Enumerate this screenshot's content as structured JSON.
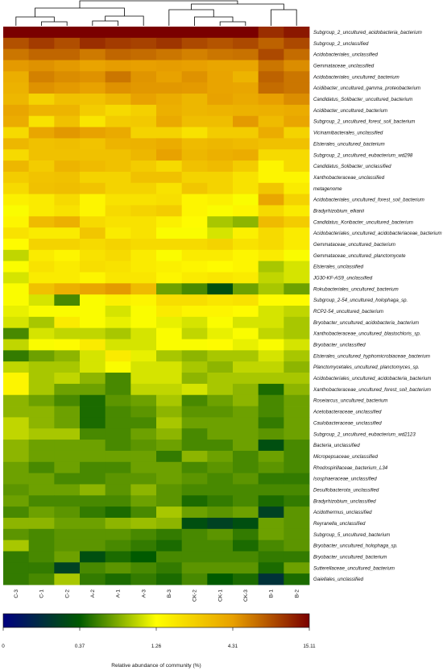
{
  "chart_data": {
    "type": "heatmap",
    "value_scale": "log",
    "columns": [
      "C-3",
      "C-1",
      "C-2",
      "A-2",
      "A-1",
      "A-3",
      "B-3",
      "CK-2",
      "CK-1",
      "CK-3",
      "B-1",
      "B-2"
    ],
    "rows": [
      "Subgroup_2_uncultured_acidobacteria_bacterium",
      "Subgroup_2_unclassified",
      "Acidobacteriales_unclassified",
      "Gemmataceae_unclassified",
      "Acidobacteriales_uncultured_bacterium",
      "Acidibacter_uncultured_gamma_proteobacterium",
      "Candidatus_Solibacter_uncultured_bacterium",
      "Acidibacter_uncultured_bacterium",
      "Subgroup_2_uncultured_forest_soil_bacterium",
      "Vicinamibacterales_unclassified",
      "Elsterales_uncultured_bacterium",
      "Subgroup_2_uncultured_eubacterium_wd298",
      "Candidatus_Solibacter_unclassified",
      "Xanthobacteraceae_unclassified",
      "metagenome",
      "Acidobacteriales_uncultured_forest_soil_bacterium",
      "Bradyrhizobium_elkanii",
      "Candidatus_Koribacter_uncultured_bacterium",
      "Acidobacteriales_uncultured_acidobacteriaceae_bacterium",
      "Gemmataceae_uncultured_bacterium",
      "Gemmataceae_uncultured_planctomycete",
      "Elsterales_unclassified",
      "JG30-KF-AS9_unclassified",
      "Rokubacteriales_uncultured_bacterium",
      "Subgroup_2-54_uncultured_holophaga_sp.",
      "RCP2-54_uncultured_bacterium",
      "Bryobacter_uncultured_acidobacteria_bacterium",
      "Xanthobacteraceae_uncultured_blastochloris_sp.",
      "Bryobacter_unclassified",
      "Elsterales_uncultured_hyphomicrobiaceae_bacterium",
      "Planctomycetales_uncultured_planctomyces_sp.",
      "Acidobacteriales_uncultured_acidobacteria_bacterium",
      "Xanthobacteraceae_uncultured_forest_soil_bacterium",
      "Roseiarcus_uncultured_bacterium",
      "Acetobacteraceae_unclassified",
      "Caulobacteraceae_unclassified",
      "Subgroup_2_uncultured_eubacterium_wd2123",
      "Bacteria_unclassified",
      "Micropepsaceae_unclassified",
      "Rhodospirillaceae_bacterium_L34",
      "Isosphaeraceae_unclassified",
      "Desulfobacterota_unclassified",
      "Bradyrhizobium_unclassified",
      "Acidothermus_unclassified",
      "Reyranella_unclassified",
      "Subgroup_5_uncultured_bacterium",
      "Bryobacter_uncultured_holophaga_sp.",
      "Bryobacter_uncultured_bacterium",
      "Sutterellaceae_uncultured_bacterium",
      "Gaiellales_unclassified"
    ],
    "values": [
      [
        15.11,
        15.11,
        15.11,
        15.11,
        15.11,
        15.11,
        15.11,
        15.11,
        15.11,
        15.11,
        10.5,
        12.5
      ],
      [
        8.0,
        9.5,
        8.2,
        10.5,
        9.5,
        9.0,
        10.0,
        8.5,
        7.8,
        8.5,
        7.0,
        8.5
      ],
      [
        6.0,
        6.8,
        6.8,
        5.8,
        6.8,
        6.5,
        6.0,
        5.5,
        6.0,
        6.2,
        8.5,
        6.5
      ],
      [
        4.5,
        4.8,
        4.5,
        4.1,
        4.4,
        4.3,
        4.4,
        4.3,
        4.0,
        4.0,
        6.0,
        5.0
      ],
      [
        3.6,
        5.5,
        5.0,
        4.8,
        6.0,
        4.7,
        4.2,
        4.8,
        4.1,
        3.3,
        7.0,
        6.0
      ],
      [
        3.4,
        4.8,
        4.5,
        4.2,
        4.8,
        4.6,
        4.6,
        4.5,
        4.1,
        4.0,
        6.5,
        6.0
      ],
      [
        3.2,
        2.2,
        2.8,
        2.7,
        3.2,
        4.2,
        3.7,
        3.2,
        4.2,
        3.8,
        4.3,
        5.0
      ],
      [
        4.0,
        3.3,
        3.3,
        2.4,
        2.0,
        2.3,
        3.5,
        3.2,
        3.3,
        3.4,
        3.5,
        3.7
      ],
      [
        3.7,
        1.8,
        2.8,
        1.7,
        2.4,
        2.5,
        3.8,
        2.9,
        2.9,
        4.5,
        3.0,
        4.0
      ],
      [
        2.0,
        4.0,
        4.6,
        4.2,
        3.8,
        2.2,
        2.2,
        1.8,
        2.4,
        2.4,
        3.7,
        2.2
      ],
      [
        3.2,
        2.8,
        2.9,
        2.7,
        3.3,
        3.4,
        3.7,
        3.0,
        3.2,
        3.0,
        2.8,
        2.8
      ],
      [
        2.0,
        2.8,
        2.8,
        2.8,
        2.8,
        3.2,
        4.2,
        3.2,
        3.5,
        3.7,
        2.0,
        2.0
      ],
      [
        3.2,
        2.4,
        3.3,
        3.0,
        2.8,
        2.4,
        2.0,
        2.8,
        3.0,
        2.4,
        1.4,
        2.0
      ],
      [
        2.4,
        2.7,
        2.8,
        2.2,
        2.2,
        2.8,
        2.8,
        2.2,
        2.2,
        1.8,
        1.4,
        1.4
      ],
      [
        2.0,
        2.8,
        2.9,
        2.7,
        2.2,
        2.2,
        1.8,
        2.6,
        2.2,
        1.8,
        2.6,
        1.6
      ],
      [
        1.5,
        1.6,
        2.0,
        1.4,
        1.8,
        1.8,
        1.9,
        1.4,
        1.5,
        1.2,
        4.0,
        2.2
      ],
      [
        1.2,
        1.6,
        1.8,
        1.4,
        2.0,
        2.2,
        2.4,
        1.4,
        1.2,
        1.4,
        2.0,
        1.6
      ],
      [
        1.4,
        3.0,
        3.5,
        2.0,
        1.8,
        1.8,
        1.5,
        1.3,
        0.8,
        0.7,
        3.0,
        2.4
      ],
      [
        1.8,
        1.6,
        1.6,
        2.6,
        1.6,
        1.8,
        1.2,
        1.2,
        1.0,
        1.5,
        2.0,
        1.6
      ],
      [
        1.3,
        2.2,
        2.2,
        2.0,
        2.2,
        2.0,
        2.0,
        2.0,
        2.2,
        1.8,
        2.0,
        1.6
      ],
      [
        0.9,
        1.6,
        1.4,
        1.8,
        2.0,
        1.6,
        1.2,
        1.6,
        1.6,
        1.4,
        1.6,
        1.2
      ],
      [
        1.2,
        1.8,
        1.6,
        1.9,
        1.8,
        1.6,
        1.5,
        1.4,
        1.3,
        1.4,
        0.8,
        1.0
      ],
      [
        1.0,
        1.6,
        1.6,
        1.4,
        1.7,
        1.7,
        1.4,
        1.6,
        1.7,
        1.6,
        0.9,
        1.0
      ],
      [
        1.2,
        2.8,
        3.5,
        4.0,
        4.5,
        3.0,
        0.6,
        0.5,
        0.3,
        0.6,
        0.8,
        0.6
      ],
      [
        1.2,
        1.0,
        0.5,
        1.2,
        1.5,
        1.4,
        1.9,
        1.9,
        1.7,
        1.8,
        1.3,
        1.3
      ],
      [
        1.1,
        1.2,
        1.2,
        1.2,
        1.0,
        1.2,
        1.6,
        1.4,
        1.4,
        1.3,
        1.0,
        0.9
      ],
      [
        1.0,
        0.8,
        1.6,
        1.2,
        1.1,
        1.2,
        1.1,
        1.0,
        1.2,
        1.0,
        1.0,
        0.8
      ],
      [
        0.5,
        1.0,
        0.9,
        0.9,
        0.8,
        1.0,
        1.2,
        0.9,
        1.1,
        1.2,
        0.9,
        0.8
      ],
      [
        0.9,
        1.2,
        1.3,
        1.6,
        1.0,
        1.0,
        1.2,
        1.2,
        1.3,
        1.1,
        1.2,
        1.0
      ],
      [
        0.45,
        0.6,
        0.7,
        1.0,
        1.6,
        1.1,
        0.8,
        0.7,
        0.8,
        0.8,
        1.0,
        0.8
      ],
      [
        0.9,
        0.8,
        0.8,
        1.0,
        1.2,
        1.0,
        1.0,
        0.8,
        0.7,
        0.9,
        0.9,
        0.7
      ],
      [
        1.4,
        0.8,
        0.9,
        0.7,
        0.5,
        1.0,
        1.0,
        0.7,
        0.8,
        0.8,
        0.8,
        0.8
      ],
      [
        1.4,
        0.8,
        0.6,
        0.6,
        0.5,
        0.9,
        0.9,
        1.0,
        0.8,
        0.7,
        0.4,
        0.7
      ],
      [
        0.7,
        0.6,
        0.5,
        0.4,
        0.55,
        0.6,
        0.8,
        0.5,
        0.6,
        0.7,
        0.5,
        0.6
      ],
      [
        0.7,
        0.7,
        0.6,
        0.4,
        0.5,
        0.55,
        0.7,
        0.55,
        0.55,
        0.6,
        0.5,
        0.6
      ],
      [
        0.9,
        0.7,
        0.6,
        0.4,
        0.5,
        0.5,
        0.8,
        0.6,
        0.6,
        0.6,
        0.45,
        0.6
      ],
      [
        0.9,
        0.8,
        0.8,
        0.5,
        0.5,
        0.6,
        0.7,
        0.5,
        0.6,
        0.6,
        0.55,
        0.6
      ],
      [
        0.7,
        0.6,
        0.6,
        0.6,
        0.5,
        0.55,
        0.6,
        0.5,
        0.5,
        0.6,
        0.3,
        0.5
      ],
      [
        0.7,
        0.6,
        0.6,
        0.6,
        0.6,
        0.6,
        0.45,
        0.7,
        0.6,
        0.5,
        0.6,
        0.5
      ],
      [
        0.6,
        0.5,
        0.6,
        0.5,
        0.5,
        0.6,
        0.6,
        0.5,
        0.55,
        0.5,
        0.55,
        0.5
      ],
      [
        0.6,
        0.6,
        0.5,
        0.5,
        0.55,
        0.55,
        0.6,
        0.55,
        0.5,
        0.55,
        0.45,
        0.45
      ],
      [
        0.55,
        0.6,
        0.6,
        0.7,
        0.55,
        0.7,
        0.55,
        0.5,
        0.5,
        0.5,
        0.5,
        0.5
      ],
      [
        0.6,
        0.5,
        0.5,
        0.5,
        0.5,
        0.6,
        0.55,
        0.4,
        0.45,
        0.5,
        0.4,
        0.45
      ],
      [
        0.5,
        0.6,
        0.55,
        0.45,
        0.4,
        0.5,
        0.8,
        0.6,
        0.55,
        0.6,
        0.25,
        0.55
      ],
      [
        0.7,
        0.7,
        0.6,
        0.6,
        0.7,
        0.75,
        0.7,
        0.3,
        0.25,
        0.3,
        0.6,
        0.55
      ],
      [
        0.55,
        0.5,
        0.55,
        0.55,
        0.55,
        0.5,
        0.45,
        0.5,
        0.55,
        0.45,
        0.6,
        0.55
      ],
      [
        0.8,
        0.5,
        0.55,
        0.55,
        0.5,
        0.45,
        0.4,
        0.5,
        0.5,
        0.4,
        0.5,
        0.55
      ],
      [
        0.45,
        0.5,
        0.6,
        0.3,
        0.4,
        0.35,
        0.5,
        0.5,
        0.5,
        0.5,
        0.45,
        0.45
      ],
      [
        0.45,
        0.45,
        0.25,
        0.5,
        0.55,
        0.5,
        0.45,
        0.55,
        0.55,
        0.55,
        0.4,
        0.6
      ],
      [
        0.45,
        0.5,
        0.8,
        0.45,
        0.4,
        0.45,
        0.4,
        0.5,
        0.35,
        0.4,
        0.2,
        0.4
      ]
    ],
    "legend": {
      "ticks": [
        "0",
        "0.37",
        "1.26",
        "4.31",
        "15.11"
      ],
      "tick_values": [
        0.1,
        0.37,
        1.26,
        4.31,
        15.11
      ],
      "range": [
        0.1,
        15.11
      ],
      "title": "Relative abundance of community (%)",
      "colors": [
        "#000080",
        "#005a00",
        "#ffff00",
        "#e8a000",
        "#7a0000"
      ]
    },
    "dendrogram": "column clustering tree shown above the columns",
    "grid": false
  }
}
